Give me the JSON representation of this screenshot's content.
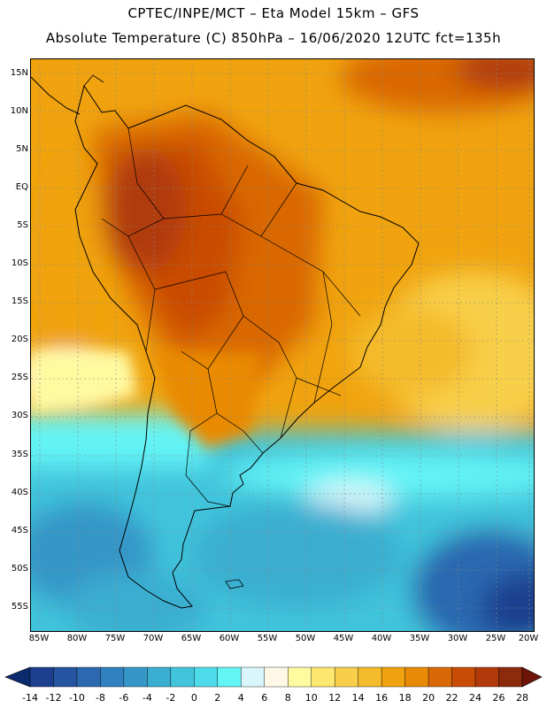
{
  "header": {
    "line1": "CPTEC/INPE/MCT –  Eta Model 15km – GFS",
    "line2": "Absolute Temperature (C) 850hPa – 16/06/2020 12UTC fct=135h"
  },
  "map": {
    "lat_labels": [
      "15N",
      "10N",
      "5N",
      "EQ",
      "5S",
      "10S",
      "15S",
      "20S",
      "25S",
      "30S",
      "35S",
      "40S",
      "45S",
      "50S",
      "55S"
    ],
    "lon_labels": [
      "85W",
      "80W",
      "75W",
      "70W",
      "65W",
      "60W",
      "55W",
      "50W",
      "45W",
      "40W",
      "35W",
      "30W",
      "25W",
      "20W"
    ]
  },
  "colorbar": {
    "labels": [
      "-14",
      "-12",
      "-10",
      "-8",
      "-6",
      "-4",
      "-2",
      "0",
      "2",
      "4",
      "6",
      "8",
      "10",
      "12",
      "14",
      "16",
      "18",
      "20",
      "22",
      "24",
      "26",
      "28"
    ],
    "colors": [
      "#1c3f8e",
      "#2554a0",
      "#2c68b0",
      "#3180bf",
      "#3596c8",
      "#3aaed0",
      "#41c4dc",
      "#4edcea",
      "#63f4f6",
      "#d8f6fb",
      "#fff8e6",
      "#fffaa0",
      "#fde770",
      "#f8cf4a",
      "#f4bb2c",
      "#f0a30e",
      "#e98a04",
      "#d96806",
      "#c94c06",
      "#b03a0a",
      "#8c2a0e"
    ],
    "low_color": "#0c2a6e",
    "high_color": "#6e1408"
  }
}
